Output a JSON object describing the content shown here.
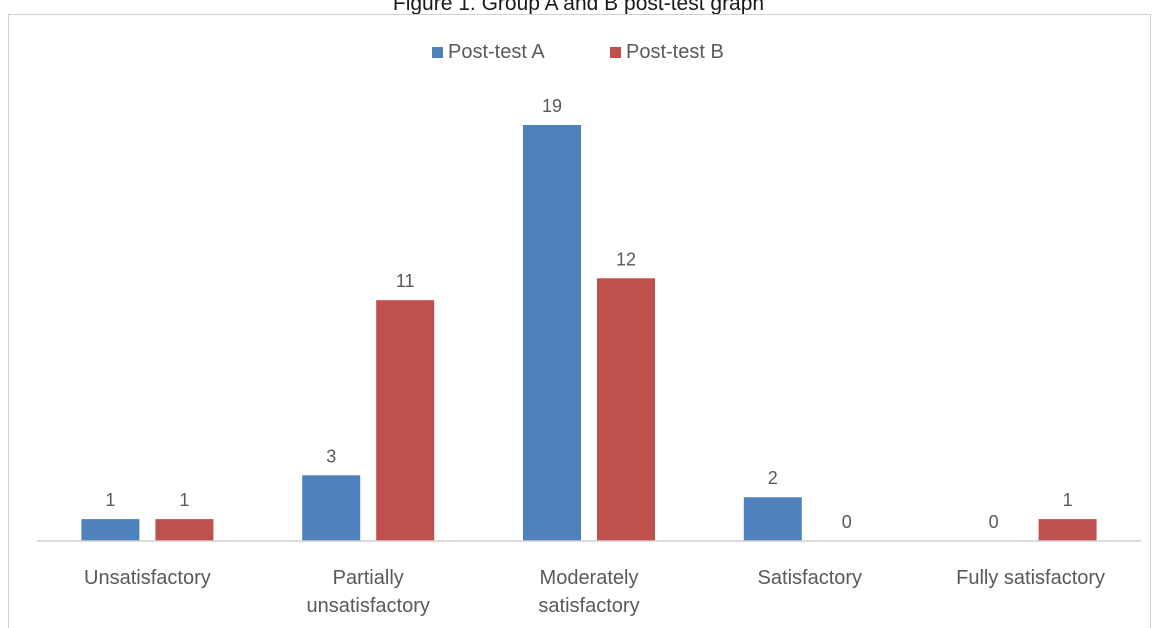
{
  "figure": {
    "caption": "Figure 1. Group A and B post-test graph"
  },
  "chart_data": {
    "type": "bar",
    "title": "",
    "xlabel": "",
    "ylabel": "",
    "categories": [
      [
        "Unsatisfactory"
      ],
      [
        "Partially",
        "unsatisfactory"
      ],
      [
        "Moderately",
        "satisfactory"
      ],
      [
        "Satisfactory"
      ],
      [
        "Fully satisfactory"
      ]
    ],
    "series": [
      {
        "name": "Post-test A",
        "color": "#4f81bd",
        "values": [
          1,
          3,
          19,
          2,
          0
        ]
      },
      {
        "name": "Post-test B",
        "color": "#c0504d",
        "values": [
          1,
          11,
          12,
          0,
          1
        ]
      }
    ],
    "ylim": [
      0,
      19
    ],
    "grid": false,
    "legend": "top-center",
    "data_labels": true
  }
}
